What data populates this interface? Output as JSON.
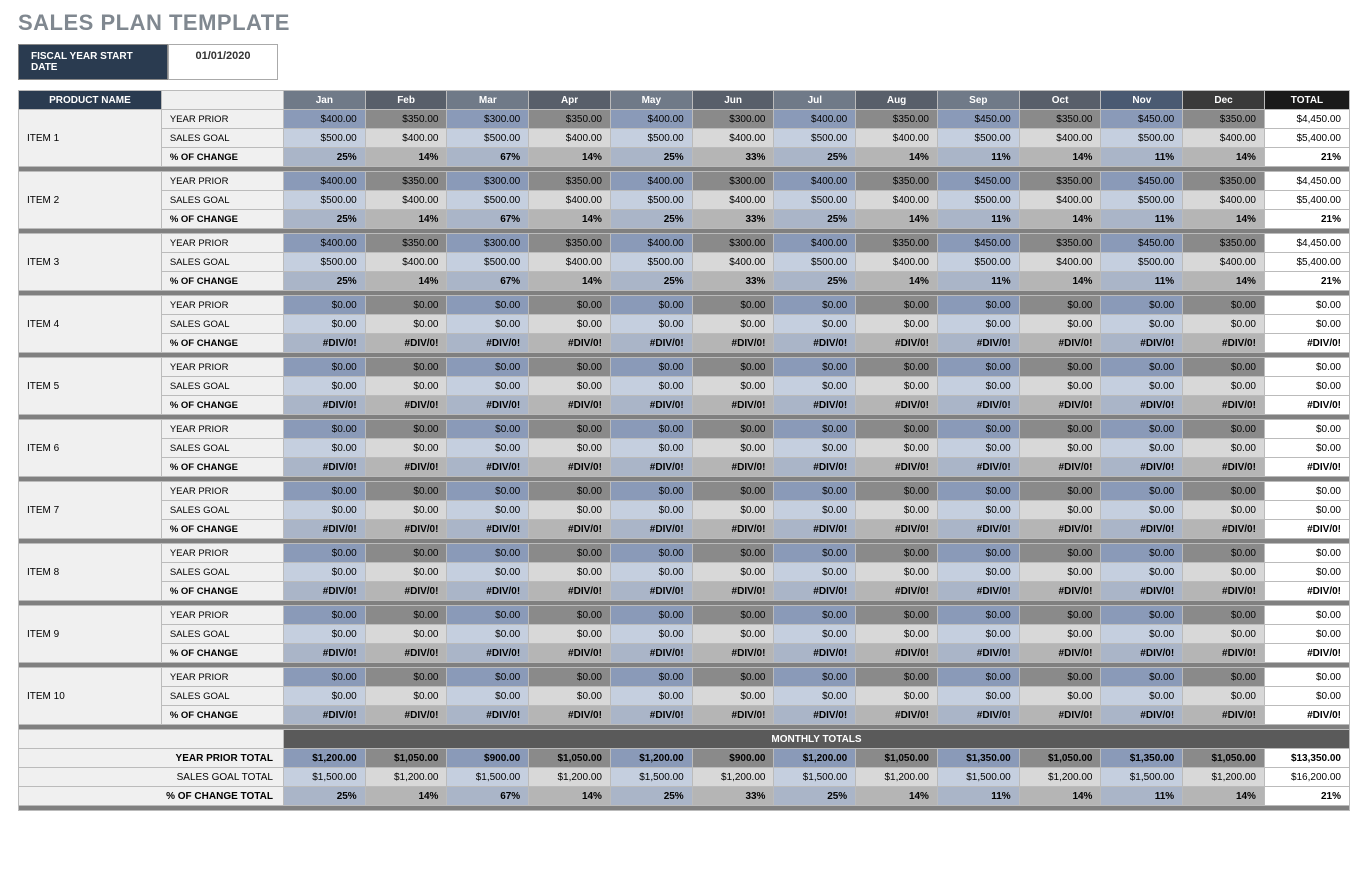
{
  "title": "SALES PLAN TEMPLATE",
  "fiscal": {
    "label": "FISCAL YEAR START DATE",
    "value": "01/01/2020"
  },
  "headers": {
    "product": "PRODUCT NAME",
    "months": [
      "Jan",
      "Feb",
      "Mar",
      "Apr",
      "May",
      "Jun",
      "Jul",
      "Aug",
      "Sep",
      "Oct",
      "Nov",
      "Dec"
    ],
    "total": "TOTAL"
  },
  "rowLabels": {
    "prior": "YEAR PRIOR",
    "goal": "SALES GOAL",
    "change": "% OF CHANGE"
  },
  "monthHeaderColors": [
    "#707a88",
    "#585f6a",
    "#707a88",
    "#585f6a",
    "#707a88",
    "#585f6a",
    "#707a88",
    "#585f6a",
    "#707a88",
    "#585f6a",
    "#4a5a72",
    "#3a3a3a"
  ],
  "cellColors": {
    "priorOdd": "#8a9ab8",
    "priorEven": "#8a8a8a",
    "goalOdd": "#c5cfdf",
    "goalEven": "#d8d8d8",
    "changeOdd": "#aab5c8",
    "changeEven": "#b5b5b5"
  },
  "items": [
    {
      "name": "ITEM 1",
      "prior": [
        "$400.00",
        "$350.00",
        "$300.00",
        "$350.00",
        "$400.00",
        "$300.00",
        "$400.00",
        "$350.00",
        "$450.00",
        "$350.00",
        "$450.00",
        "$350.00"
      ],
      "priorTotal": "$4,450.00",
      "goal": [
        "$500.00",
        "$400.00",
        "$500.00",
        "$400.00",
        "$500.00",
        "$400.00",
        "$500.00",
        "$400.00",
        "$500.00",
        "$400.00",
        "$500.00",
        "$400.00"
      ],
      "goalTotal": "$5,400.00",
      "change": [
        "25%",
        "14%",
        "67%",
        "14%",
        "25%",
        "33%",
        "25%",
        "14%",
        "11%",
        "14%",
        "11%",
        "14%"
      ],
      "changeTotal": "21%"
    },
    {
      "name": "ITEM 2",
      "prior": [
        "$400.00",
        "$350.00",
        "$300.00",
        "$350.00",
        "$400.00",
        "$300.00",
        "$400.00",
        "$350.00",
        "$450.00",
        "$350.00",
        "$450.00",
        "$350.00"
      ],
      "priorTotal": "$4,450.00",
      "goal": [
        "$500.00",
        "$400.00",
        "$500.00",
        "$400.00",
        "$500.00",
        "$400.00",
        "$500.00",
        "$400.00",
        "$500.00",
        "$400.00",
        "$500.00",
        "$400.00"
      ],
      "goalTotal": "$5,400.00",
      "change": [
        "25%",
        "14%",
        "67%",
        "14%",
        "25%",
        "33%",
        "25%",
        "14%",
        "11%",
        "14%",
        "11%",
        "14%"
      ],
      "changeTotal": "21%"
    },
    {
      "name": "ITEM 3",
      "prior": [
        "$400.00",
        "$350.00",
        "$300.00",
        "$350.00",
        "$400.00",
        "$300.00",
        "$400.00",
        "$350.00",
        "$450.00",
        "$350.00",
        "$450.00",
        "$350.00"
      ],
      "priorTotal": "$4,450.00",
      "goal": [
        "$500.00",
        "$400.00",
        "$500.00",
        "$400.00",
        "$500.00",
        "$400.00",
        "$500.00",
        "$400.00",
        "$500.00",
        "$400.00",
        "$500.00",
        "$400.00"
      ],
      "goalTotal": "$5,400.00",
      "change": [
        "25%",
        "14%",
        "67%",
        "14%",
        "25%",
        "33%",
        "25%",
        "14%",
        "11%",
        "14%",
        "11%",
        "14%"
      ],
      "changeTotal": "21%"
    },
    {
      "name": "ITEM 4",
      "prior": [
        "$0.00",
        "$0.00",
        "$0.00",
        "$0.00",
        "$0.00",
        "$0.00",
        "$0.00",
        "$0.00",
        "$0.00",
        "$0.00",
        "$0.00",
        "$0.00"
      ],
      "priorTotal": "$0.00",
      "goal": [
        "$0.00",
        "$0.00",
        "$0.00",
        "$0.00",
        "$0.00",
        "$0.00",
        "$0.00",
        "$0.00",
        "$0.00",
        "$0.00",
        "$0.00",
        "$0.00"
      ],
      "goalTotal": "$0.00",
      "change": [
        "#DIV/0!",
        "#DIV/0!",
        "#DIV/0!",
        "#DIV/0!",
        "#DIV/0!",
        "#DIV/0!",
        "#DIV/0!",
        "#DIV/0!",
        "#DIV/0!",
        "#DIV/0!",
        "#DIV/0!",
        "#DIV/0!"
      ],
      "changeTotal": "#DIV/0!"
    },
    {
      "name": "ITEM 5",
      "prior": [
        "$0.00",
        "$0.00",
        "$0.00",
        "$0.00",
        "$0.00",
        "$0.00",
        "$0.00",
        "$0.00",
        "$0.00",
        "$0.00",
        "$0.00",
        "$0.00"
      ],
      "priorTotal": "$0.00",
      "goal": [
        "$0.00",
        "$0.00",
        "$0.00",
        "$0.00",
        "$0.00",
        "$0.00",
        "$0.00",
        "$0.00",
        "$0.00",
        "$0.00",
        "$0.00",
        "$0.00"
      ],
      "goalTotal": "$0.00",
      "change": [
        "#DIV/0!",
        "#DIV/0!",
        "#DIV/0!",
        "#DIV/0!",
        "#DIV/0!",
        "#DIV/0!",
        "#DIV/0!",
        "#DIV/0!",
        "#DIV/0!",
        "#DIV/0!",
        "#DIV/0!",
        "#DIV/0!"
      ],
      "changeTotal": "#DIV/0!"
    },
    {
      "name": "ITEM 6",
      "prior": [
        "$0.00",
        "$0.00",
        "$0.00",
        "$0.00",
        "$0.00",
        "$0.00",
        "$0.00",
        "$0.00",
        "$0.00",
        "$0.00",
        "$0.00",
        "$0.00"
      ],
      "priorTotal": "$0.00",
      "goal": [
        "$0.00",
        "$0.00",
        "$0.00",
        "$0.00",
        "$0.00",
        "$0.00",
        "$0.00",
        "$0.00",
        "$0.00",
        "$0.00",
        "$0.00",
        "$0.00"
      ],
      "goalTotal": "$0.00",
      "change": [
        "#DIV/0!",
        "#DIV/0!",
        "#DIV/0!",
        "#DIV/0!",
        "#DIV/0!",
        "#DIV/0!",
        "#DIV/0!",
        "#DIV/0!",
        "#DIV/0!",
        "#DIV/0!",
        "#DIV/0!",
        "#DIV/0!"
      ],
      "changeTotal": "#DIV/0!"
    },
    {
      "name": "ITEM 7",
      "prior": [
        "$0.00",
        "$0.00",
        "$0.00",
        "$0.00",
        "$0.00",
        "$0.00",
        "$0.00",
        "$0.00",
        "$0.00",
        "$0.00",
        "$0.00",
        "$0.00"
      ],
      "priorTotal": "$0.00",
      "goal": [
        "$0.00",
        "$0.00",
        "$0.00",
        "$0.00",
        "$0.00",
        "$0.00",
        "$0.00",
        "$0.00",
        "$0.00",
        "$0.00",
        "$0.00",
        "$0.00"
      ],
      "goalTotal": "$0.00",
      "change": [
        "#DIV/0!",
        "#DIV/0!",
        "#DIV/0!",
        "#DIV/0!",
        "#DIV/0!",
        "#DIV/0!",
        "#DIV/0!",
        "#DIV/0!",
        "#DIV/0!",
        "#DIV/0!",
        "#DIV/0!",
        "#DIV/0!"
      ],
      "changeTotal": "#DIV/0!"
    },
    {
      "name": "ITEM 8",
      "prior": [
        "$0.00",
        "$0.00",
        "$0.00",
        "$0.00",
        "$0.00",
        "$0.00",
        "$0.00",
        "$0.00",
        "$0.00",
        "$0.00",
        "$0.00",
        "$0.00"
      ],
      "priorTotal": "$0.00",
      "goal": [
        "$0.00",
        "$0.00",
        "$0.00",
        "$0.00",
        "$0.00",
        "$0.00",
        "$0.00",
        "$0.00",
        "$0.00",
        "$0.00",
        "$0.00",
        "$0.00"
      ],
      "goalTotal": "$0.00",
      "change": [
        "#DIV/0!",
        "#DIV/0!",
        "#DIV/0!",
        "#DIV/0!",
        "#DIV/0!",
        "#DIV/0!",
        "#DIV/0!",
        "#DIV/0!",
        "#DIV/0!",
        "#DIV/0!",
        "#DIV/0!",
        "#DIV/0!"
      ],
      "changeTotal": "#DIV/0!"
    },
    {
      "name": "ITEM 9",
      "prior": [
        "$0.00",
        "$0.00",
        "$0.00",
        "$0.00",
        "$0.00",
        "$0.00",
        "$0.00",
        "$0.00",
        "$0.00",
        "$0.00",
        "$0.00",
        "$0.00"
      ],
      "priorTotal": "$0.00",
      "goal": [
        "$0.00",
        "$0.00",
        "$0.00",
        "$0.00",
        "$0.00",
        "$0.00",
        "$0.00",
        "$0.00",
        "$0.00",
        "$0.00",
        "$0.00",
        "$0.00"
      ],
      "goalTotal": "$0.00",
      "change": [
        "#DIV/0!",
        "#DIV/0!",
        "#DIV/0!",
        "#DIV/0!",
        "#DIV/0!",
        "#DIV/0!",
        "#DIV/0!",
        "#DIV/0!",
        "#DIV/0!",
        "#DIV/0!",
        "#DIV/0!",
        "#DIV/0!"
      ],
      "changeTotal": "#DIV/0!"
    },
    {
      "name": "ITEM 10",
      "prior": [
        "$0.00",
        "$0.00",
        "$0.00",
        "$0.00",
        "$0.00",
        "$0.00",
        "$0.00",
        "$0.00",
        "$0.00",
        "$0.00",
        "$0.00",
        "$0.00"
      ],
      "priorTotal": "$0.00",
      "goal": [
        "$0.00",
        "$0.00",
        "$0.00",
        "$0.00",
        "$0.00",
        "$0.00",
        "$0.00",
        "$0.00",
        "$0.00",
        "$0.00",
        "$0.00",
        "$0.00"
      ],
      "goalTotal": "$0.00",
      "change": [
        "#DIV/0!",
        "#DIV/0!",
        "#DIV/0!",
        "#DIV/0!",
        "#DIV/0!",
        "#DIV/0!",
        "#DIV/0!",
        "#DIV/0!",
        "#DIV/0!",
        "#DIV/0!",
        "#DIV/0!",
        "#DIV/0!"
      ],
      "changeTotal": "#DIV/0!"
    }
  ],
  "monthlyTotals": {
    "header": "MONTHLY TOTALS",
    "rows": [
      {
        "label": "YEAR PRIOR TOTAL",
        "bold": true,
        "vals": [
          "$1,200.00",
          "$1,050.00",
          "$900.00",
          "$1,050.00",
          "$1,200.00",
          "$900.00",
          "$1,200.00",
          "$1,050.00",
          "$1,350.00",
          "$1,050.00",
          "$1,350.00",
          "$1,050.00"
        ],
        "total": "$13,350.00"
      },
      {
        "label": "SALES GOAL TOTAL",
        "bold": false,
        "vals": [
          "$1,500.00",
          "$1,200.00",
          "$1,500.00",
          "$1,200.00",
          "$1,500.00",
          "$1,200.00",
          "$1,500.00",
          "$1,200.00",
          "$1,500.00",
          "$1,200.00",
          "$1,500.00",
          "$1,200.00"
        ],
        "total": "$16,200.00"
      },
      {
        "label": "% OF CHANGE TOTAL",
        "bold": true,
        "vals": [
          "25%",
          "14%",
          "67%",
          "14%",
          "25%",
          "33%",
          "25%",
          "14%",
          "11%",
          "14%",
          "11%",
          "14%"
        ],
        "total": "21%"
      }
    ]
  }
}
